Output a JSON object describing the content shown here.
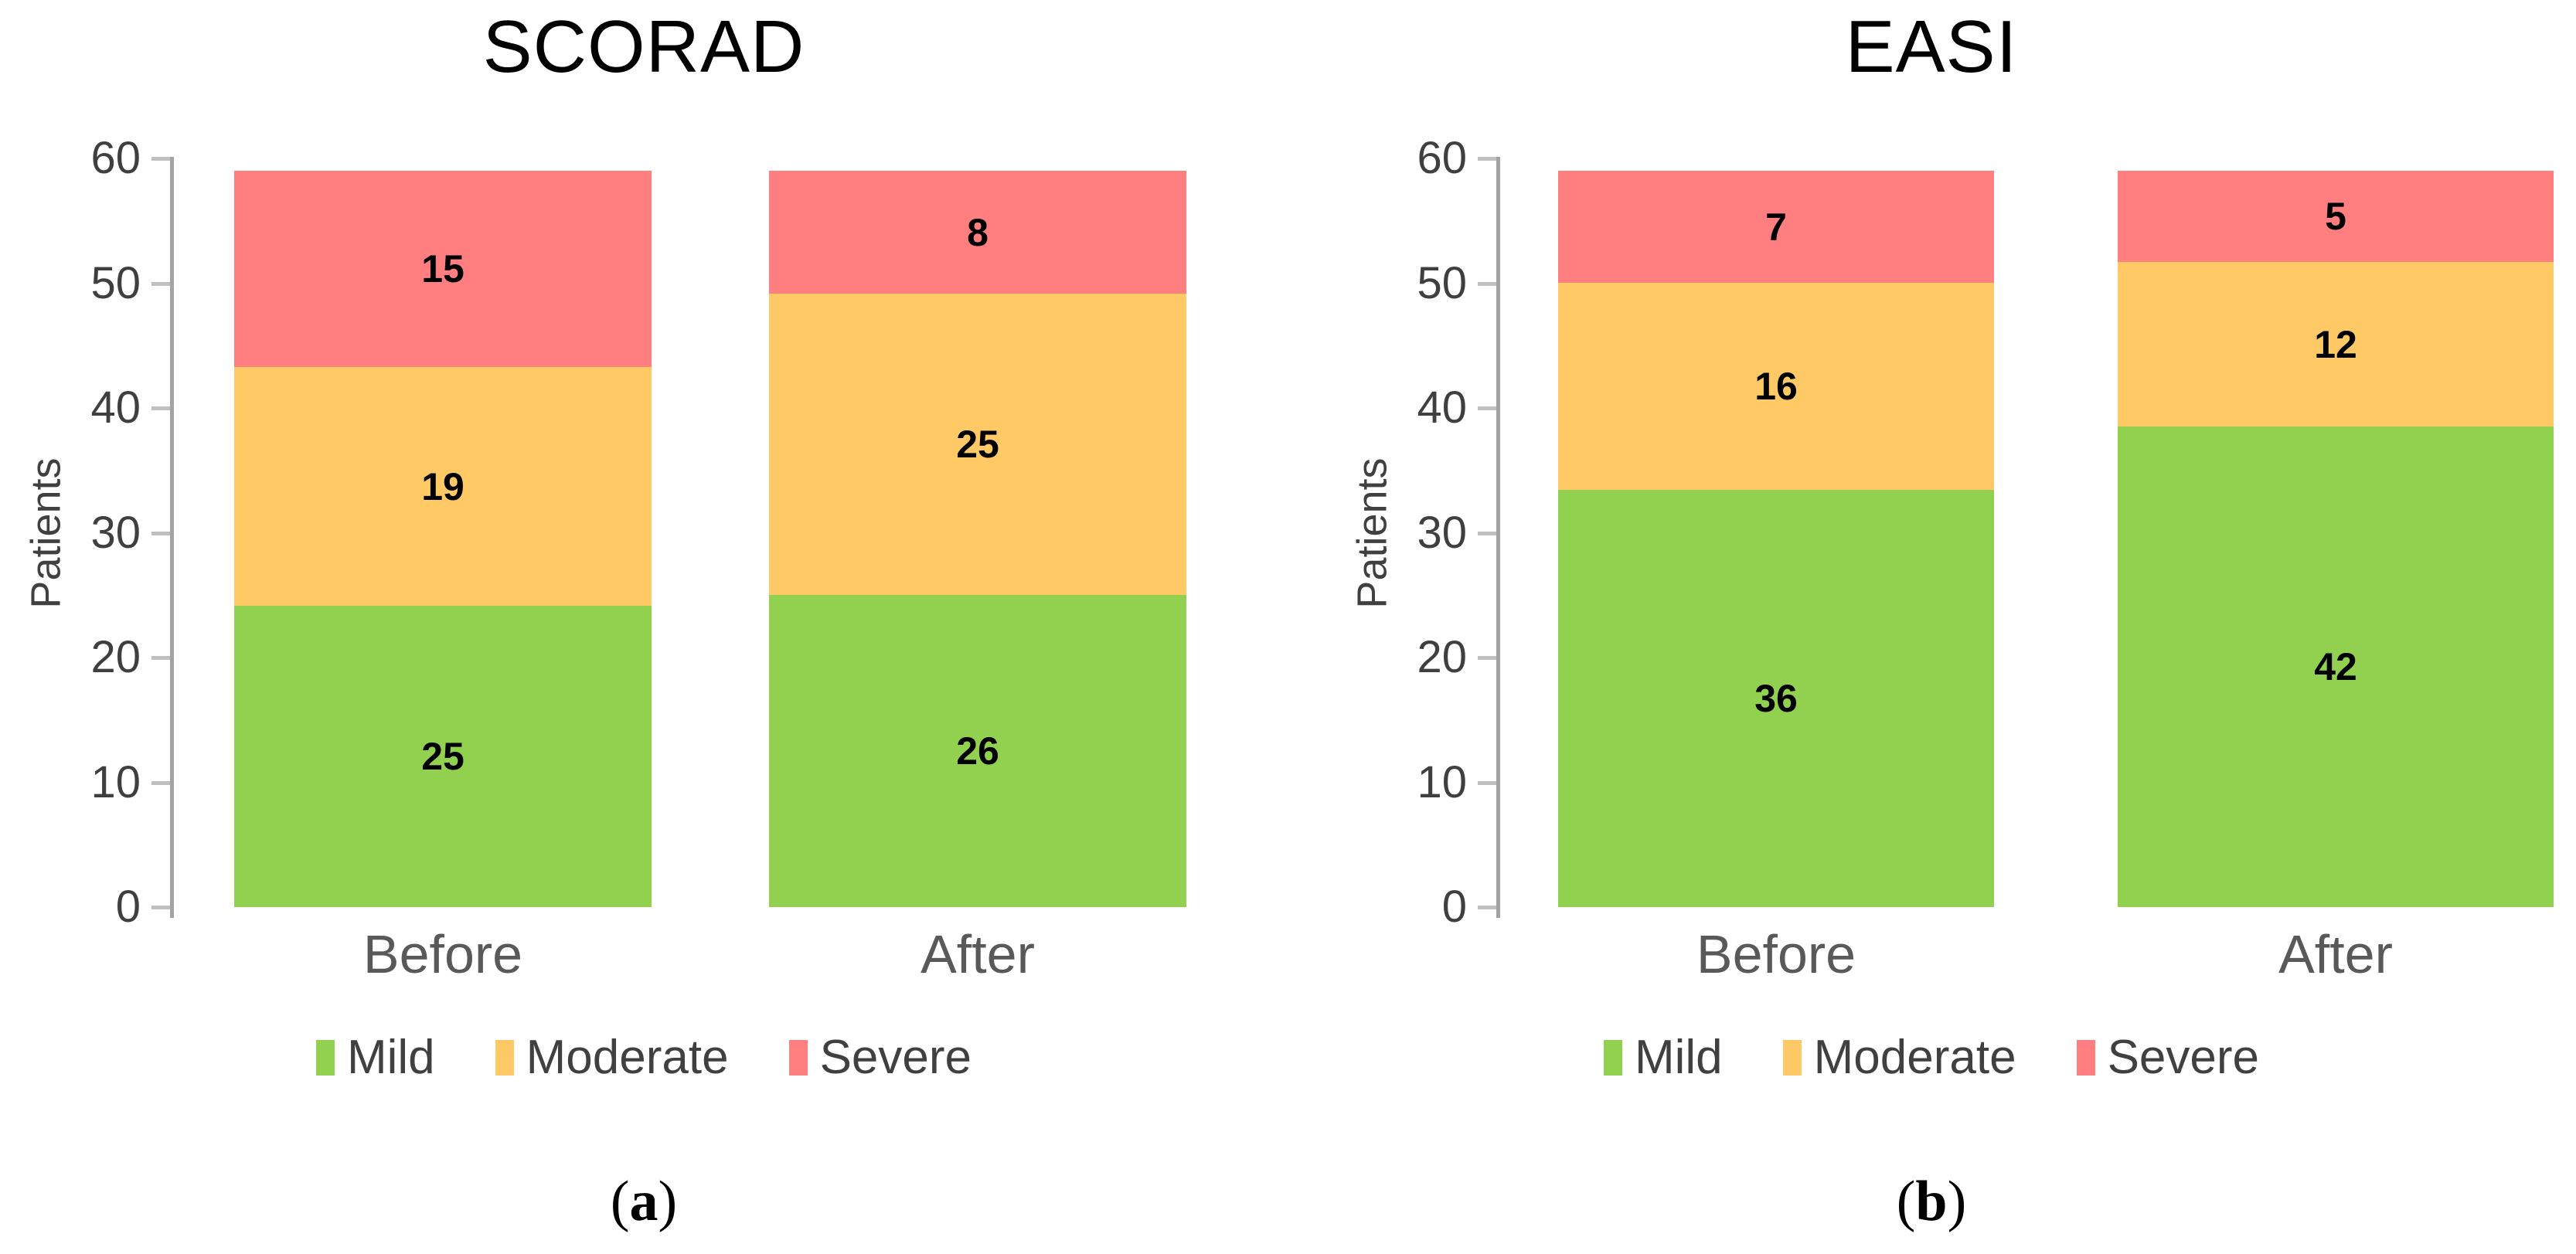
{
  "chart_data": [
    {
      "type": "bar",
      "stacked": true,
      "title": "SCORAD",
      "ylabel": "Patients",
      "ylim": [
        0,
        60
      ],
      "yticks": [
        0,
        10,
        20,
        30,
        40,
        50,
        60
      ],
      "categories": [
        "Before",
        "After"
      ],
      "series": [
        {
          "name": "Mild",
          "color": "#92D050",
          "values": [
            25,
            26
          ]
        },
        {
          "name": "Moderate",
          "color": "#FFCA66",
          "values": [
            19,
            25
          ]
        },
        {
          "name": "Severe",
          "color": "#FF7E80",
          "values": [
            15,
            8
          ]
        }
      ],
      "grid": false,
      "legend_position": "bottom",
      "caption": {
        "open": "(",
        "letter": "a",
        "close": ")"
      }
    },
    {
      "type": "bar",
      "stacked": true,
      "title": "EASI",
      "ylabel": "Patients",
      "ylim": [
        0,
        60
      ],
      "yticks": [
        0,
        10,
        20,
        30,
        40,
        50,
        60
      ],
      "categories": [
        "Before",
        "After"
      ],
      "series": [
        {
          "name": "Mild",
          "color": "#92D050",
          "values": [
            36,
            42
          ]
        },
        {
          "name": "Moderate",
          "color": "#FFCA66",
          "values": [
            16,
            12
          ]
        },
        {
          "name": "Severe",
          "color": "#FF7E80",
          "values": [
            7,
            5
          ]
        }
      ],
      "grid": false,
      "legend_position": "bottom",
      "caption": {
        "open": "(",
        "letter": "b",
        "close": ")"
      }
    }
  ],
  "colors": {
    "mild": "#92D050",
    "moderate": "#FFCA66",
    "severe": "#FF7E80",
    "axis_line": "#A3A3A3",
    "tick_mark": "#C0C0C0",
    "tick_label": "#3F3F3F",
    "category_label": "#595959",
    "legend_label": "#404040"
  }
}
